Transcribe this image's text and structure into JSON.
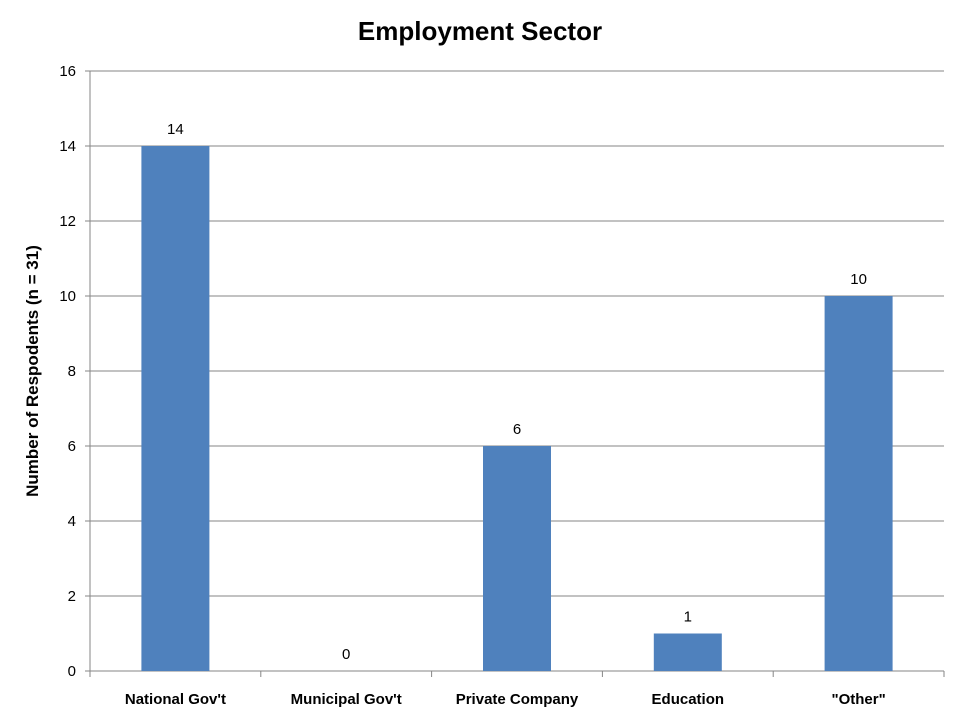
{
  "chart_data": {
    "type": "bar",
    "title": "Employment Sector",
    "xlabel": "",
    "ylabel": "Number of Respodents (n = 31)",
    "categories": [
      "National Gov't",
      "Municipal Gov't",
      "Private Company",
      "Education",
      "\"Other\""
    ],
    "values": [
      14,
      0,
      6,
      1,
      10
    ],
    "data_labels": [
      "14",
      "0",
      "6",
      "1",
      "10"
    ],
    "ylim": [
      0,
      16
    ],
    "yticks": [
      "0",
      "2",
      "4",
      "6",
      "8",
      "10",
      "12",
      "14",
      "16"
    ],
    "grid": true,
    "legend": "none",
    "bar_color": "#4F81BD"
  }
}
